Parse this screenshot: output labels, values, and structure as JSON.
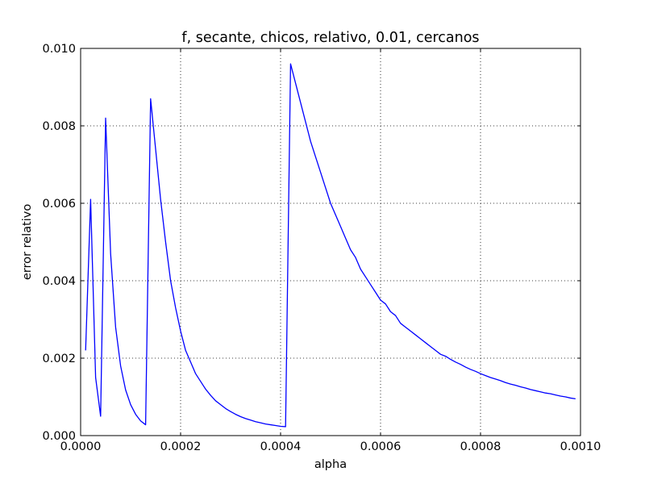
{
  "chart_data": {
    "type": "line",
    "title": "f, secante, chicos, relativo, 0.01, cercanos",
    "xlabel": "alpha",
    "ylabel": "error relativo",
    "xlim": [
      0.0,
      0.001
    ],
    "ylim": [
      0.0,
      0.01
    ],
    "x_ticks": [
      0.0,
      0.0002,
      0.0004,
      0.0006,
      0.0008,
      0.001
    ],
    "x_tick_labels": [
      "0.0000",
      "0.0002",
      "0.0004",
      "0.0006",
      "0.0008",
      "0.0010"
    ],
    "y_ticks": [
      0.0,
      0.002,
      0.004,
      0.006,
      0.008,
      0.01
    ],
    "y_tick_labels": [
      "0.000",
      "0.002",
      "0.004",
      "0.006",
      "0.008",
      "0.010"
    ],
    "grid": true,
    "line_color": "#0000ff",
    "series": [
      {
        "x": [
          1e-05,
          2e-05,
          3e-05,
          4e-05,
          5e-05,
          6e-05,
          7e-05,
          8e-05,
          9e-05,
          0.0001,
          0.00011,
          0.00012,
          0.00013,
          0.00014,
          0.00015,
          0.00016,
          0.00017,
          0.00018,
          0.00019,
          0.0002,
          0.00021,
          0.00022,
          0.00023,
          0.00024,
          0.00025,
          0.00026,
          0.00027,
          0.00028,
          0.00029,
          0.0003,
          0.00031,
          0.00032,
          0.00033,
          0.00034,
          0.00035,
          0.00036,
          0.00037,
          0.00038,
          0.00039,
          0.0004,
          0.00041,
          0.00042,
          0.00043,
          0.00044,
          0.00045,
          0.00046,
          0.00047,
          0.00048,
          0.00049,
          0.0005,
          0.00051,
          0.00052,
          0.00053,
          0.00054,
          0.00055,
          0.00056,
          0.00057,
          0.00058,
          0.00059,
          0.0006,
          0.00061,
          0.00062,
          0.00063,
          0.00064,
          0.00065,
          0.00066,
          0.00067,
          0.00068,
          0.00069,
          0.0007,
          0.00071,
          0.00072,
          0.00073,
          0.00074,
          0.00075,
          0.00076,
          0.00077,
          0.00078,
          0.00079,
          0.0008,
          0.00081,
          0.00082,
          0.00083,
          0.00084,
          0.00085,
          0.00086,
          0.00087,
          0.00088,
          0.00089,
          0.0009,
          0.00091,
          0.00092,
          0.00093,
          0.00094,
          0.00095,
          0.00096,
          0.00097,
          0.00098,
          0.00099
        ],
        "y": [
          0.0022,
          0.0061,
          0.0015,
          0.0005,
          0.0082,
          0.0047,
          0.0028,
          0.0018,
          0.00118,
          0.0008,
          0.00055,
          0.00038,
          0.00028,
          0.0087,
          0.0074,
          0.0061,
          0.005,
          0.004,
          0.0033,
          0.0027,
          0.0022,
          0.0019,
          0.0016,
          0.0014,
          0.0012,
          0.00104,
          0.0009,
          0.0008,
          0.0007,
          0.00062,
          0.00055,
          0.00049,
          0.00044,
          0.0004,
          0.00036,
          0.00033,
          0.0003,
          0.00028,
          0.00026,
          0.00024,
          0.00023,
          0.0096,
          0.0091,
          0.0086,
          0.0081,
          0.0076,
          0.0072,
          0.0068,
          0.0064,
          0.006,
          0.0057,
          0.0054,
          0.0051,
          0.0048,
          0.0046,
          0.0043,
          0.0041,
          0.0039,
          0.0037,
          0.0035,
          0.0034,
          0.0032,
          0.0031,
          0.0029,
          0.0028,
          0.0027,
          0.0026,
          0.0025,
          0.0024,
          0.0023,
          0.0022,
          0.0021,
          0.00205,
          0.00197,
          0.0019,
          0.00184,
          0.00177,
          0.00171,
          0.00166,
          0.0016,
          0.00155,
          0.0015,
          0.00146,
          0.00142,
          0.00137,
          0.00133,
          0.0013,
          0.00126,
          0.00123,
          0.00119,
          0.00116,
          0.00113,
          0.0011,
          0.00108,
          0.00105,
          0.00102,
          0.001,
          0.00097,
          0.00095
        ]
      }
    ]
  }
}
